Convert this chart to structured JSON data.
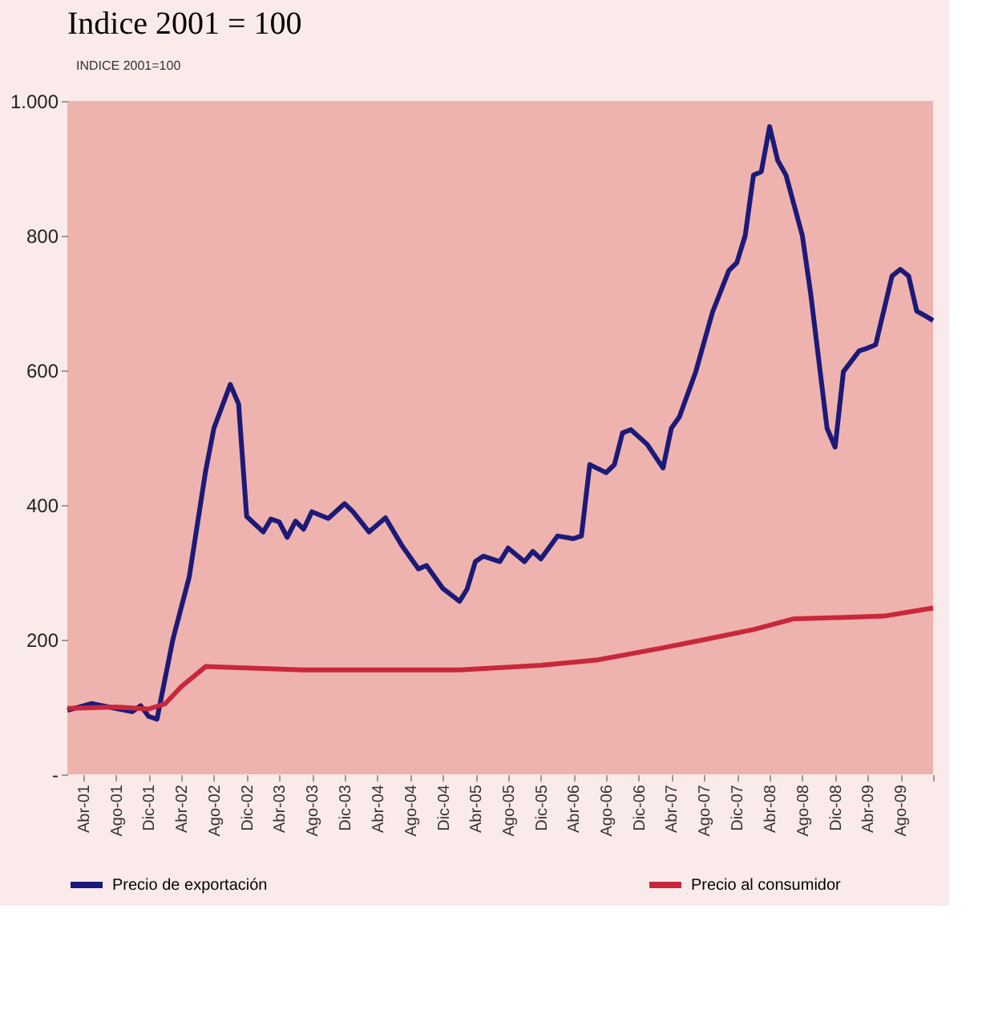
{
  "chart_data": {
    "type": "line",
    "title": "Indice 2001 = 100",
    "ylabel": "INDICE 2001=100",
    "xlim": [
      "2001-02",
      "2009-12"
    ],
    "xticks": [
      {
        "value": "2001-04",
        "label": "Abr-01"
      },
      {
        "value": "2001-08",
        "label": "Ago-01"
      },
      {
        "value": "2001-12",
        "label": "Dic-01"
      },
      {
        "value": "2002-04",
        "label": "Abr-02"
      },
      {
        "value": "2002-08",
        "label": "Ago-02"
      },
      {
        "value": "2002-12",
        "label": "Dic-02"
      },
      {
        "value": "2003-04",
        "label": "Abr-03"
      },
      {
        "value": "2003-08",
        "label": "Ago-03"
      },
      {
        "value": "2003-12",
        "label": "Dic-03"
      },
      {
        "value": "2004-04",
        "label": "Abr-04"
      },
      {
        "value": "2004-08",
        "label": "Ago-04"
      },
      {
        "value": "2004-12",
        "label": "Dic-04"
      },
      {
        "value": "2005-04",
        "label": "Abr-05"
      },
      {
        "value": "2005-08",
        "label": "Ago-05"
      },
      {
        "value": "2005-12",
        "label": "Dic-05"
      },
      {
        "value": "2006-04",
        "label": "Abr-06"
      },
      {
        "value": "2006-08",
        "label": "Ago-06"
      },
      {
        "value": "2006-12",
        "label": "Dic-06"
      },
      {
        "value": "2007-04",
        "label": "Abr-07"
      },
      {
        "value": "2007-08",
        "label": "Ago-07"
      },
      {
        "value": "2007-12",
        "label": "Dic-07"
      },
      {
        "value": "2008-04",
        "label": "Abr-08"
      },
      {
        "value": "2008-08",
        "label": "Ago-08"
      },
      {
        "value": "2008-12",
        "label": "Dic-08"
      },
      {
        "value": "2009-04",
        "label": "Abr-09"
      },
      {
        "value": "2009-08",
        "label": "Ago-09"
      },
      {
        "value": "2009-12",
        "label": null
      }
    ],
    "ylim": [
      0,
      1000
    ],
    "yticks": [
      {
        "value": 0,
        "label": "-"
      },
      200,
      400,
      600,
      800,
      {
        "value": 1000,
        "label": "1.000"
      }
    ],
    "grid": false,
    "legend": "bottom",
    "marker": "none",
    "line_style": "solid",
    "series": [
      {
        "name": "Precio de exportación",
        "color": "#1c1a78",
        "x": [
          "2001-02",
          "2001-05",
          "2001-08",
          "2001-10",
          "2001-11",
          "2001-12",
          "2002-01",
          "2002-03",
          "2002-05",
          "2002-07",
          "2002-08",
          "2002-10",
          "2002-11",
          "2002-12",
          "2003-02",
          "2003-03",
          "2003-04",
          "2003-05",
          "2003-06",
          "2003-07",
          "2003-08",
          "2003-10",
          "2003-12",
          "2004-01",
          "2004-03",
          "2004-05",
          "2004-07",
          "2004-09",
          "2004-10",
          "2004-12",
          "2005-02",
          "2005-03",
          "2005-04",
          "2005-05",
          "2005-07",
          "2005-08",
          "2005-10",
          "2005-11",
          "2005-12",
          "2006-02",
          "2006-04",
          "2006-05",
          "2006-06",
          "2006-08",
          "2006-09",
          "2006-10",
          "2006-11",
          "2007-01",
          "2007-03",
          "2007-04",
          "2007-05",
          "2007-07",
          "2007-09",
          "2007-11",
          "2007-12",
          "2008-01",
          "2008-02",
          "2008-03",
          "2008-04",
          "2008-05",
          "2008-06",
          "2008-08",
          "2008-09",
          "2008-11",
          "2008-12",
          "2009-01",
          "2009-03",
          "2009-04",
          "2009-05",
          "2009-07",
          "2009-08",
          "2009-09",
          "2009-10",
          "2009-11",
          "2009-12"
        ],
        "values": [
          95,
          105,
          98,
          93,
          102,
          86,
          82,
          200,
          293,
          450,
          514,
          579,
          550,
          383,
          360,
          379,
          375,
          352,
          376,
          364,
          390,
          380,
          402,
          390,
          360,
          381,
          340,
          305,
          310,
          276,
          257,
          275,
          316,
          324,
          316,
          336,
          316,
          331,
          320,
          354,
          350,
          354,
          460,
          448,
          460,
          507,
          512,
          490,
          455,
          514,
          531,
          598,
          686,
          748,
          760,
          800,
          890,
          895,
          962,
          912,
          890,
          800,
          714,
          514,
          486,
          598,
          629,
          633,
          638,
          740,
          750,
          740,
          688,
          681,
          674
        ]
      },
      {
        "name": "Precio al consumidor",
        "color": "#c8283c",
        "x": [
          "2001-02",
          "2001-08",
          "2001-12",
          "2002-02",
          "2002-04",
          "2002-07",
          "2003-07",
          "2005-02",
          "2005-12",
          "2006-07",
          "2007-03",
          "2007-08",
          "2008-02",
          "2008-07",
          "2009-01",
          "2009-06",
          "2009-12"
        ],
        "values": [
          98,
          100,
          97,
          105,
          130,
          160,
          155,
          155,
          162,
          170,
          188,
          200,
          215,
          231,
          233,
          235,
          247
        ]
      }
    ]
  }
}
